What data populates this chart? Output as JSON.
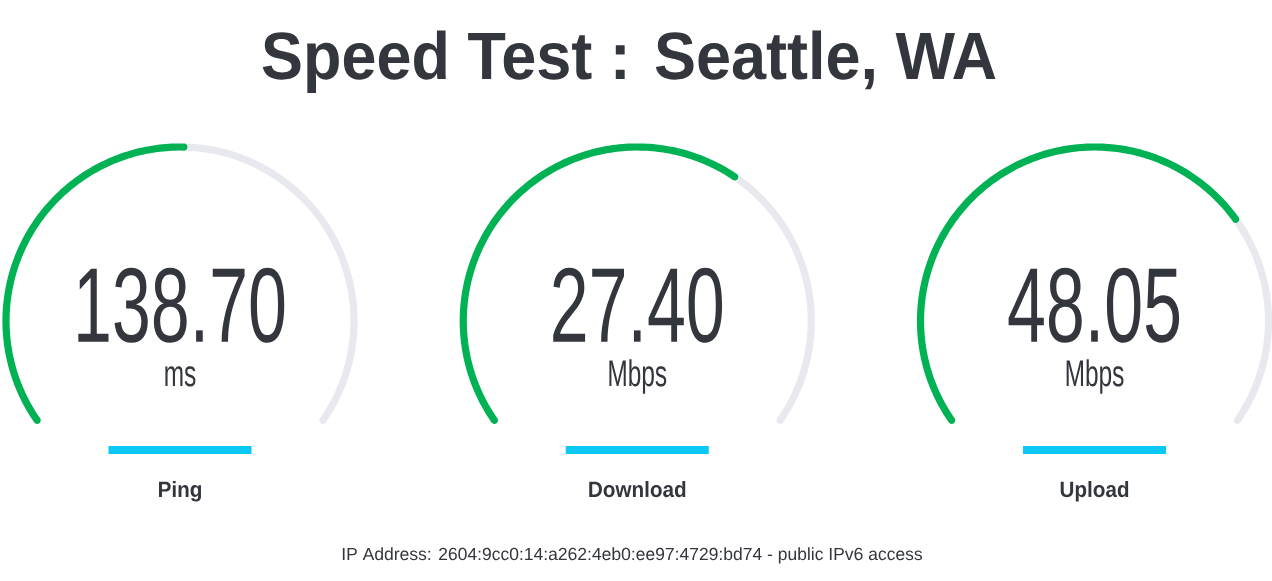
{
  "chart_data": [
    {
      "type": "other",
      "title": "Speed Test : Seattle, WA"
    },
    {
      "type": "donut",
      "title": "Ping",
      "categories": [
        null,
        null
      ],
      "values": [
        51,
        49
      ],
      "colors": [
        "#00b254",
        "#e8e9ee"
      ],
      "annotations": [
        "138.70",
        "ms"
      ]
    },
    {
      "type": "donut",
      "title": "Download",
      "categories": [
        null,
        null
      ],
      "values": [
        64,
        36
      ],
      "colors": [
        "#00b254",
        "#e8e9ee"
      ],
      "annotations": [
        "27.40",
        "Mbps"
      ]
    },
    {
      "type": "donut",
      "title": "Upload",
      "categories": [
        null,
        null
      ],
      "values": [
        72,
        28
      ],
      "colors": [
        "#00b254",
        "#e8e9ee"
      ],
      "annotations": [
        "48.05",
        "Mbps"
      ]
    },
    {
      "type": "other",
      "annotations": [
        "IP Address: 2604:9cc0:14:a262:4eb0:ee97:4729:bd74 - public IPv6 access"
      ]
    }
  ]
}
